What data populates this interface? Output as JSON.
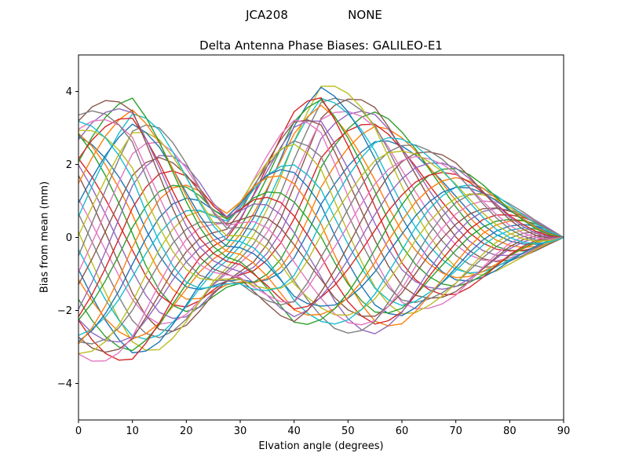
{
  "chart_data": {
    "type": "line",
    "suptitle": "JCA208                NONE",
    "title": "Delta Antenna Phase Biases: GALILEO-E1",
    "xlabel": "Elvation angle (degrees)",
    "ylabel": "Bias from mean (mm)",
    "xlim": [
      0,
      90
    ],
    "ylim": [
      -5,
      5
    ],
    "xticks": [
      0,
      10,
      20,
      30,
      40,
      50,
      60,
      70,
      80,
      90
    ],
    "yticks": [
      -4,
      -2,
      0,
      2,
      4
    ],
    "grid": false,
    "legend": "none",
    "n_series": 40,
    "x_step": 2.5,
    "line_width": 1.4,
    "axis_color": "#000000",
    "background": "#ffffff",
    "colors": [
      "#1f77b4",
      "#ff7f0e",
      "#2ca02c",
      "#d62728",
      "#9467bd",
      "#8c564b",
      "#e377c2",
      "#7f7f7f",
      "#bcbd22",
      "#17becf"
    ],
    "model": {
      "note": "family of phase-shifted oscillatory bias curves, all converging to 0 mm at 90 deg elevation",
      "period_deg": 64,
      "phase_offset": 0.3,
      "amp_base": 0.82,
      "amp_jitter": 0.22,
      "envelope_knots": [
        [
          0,
          3.4
        ],
        [
          5,
          3.5
        ],
        [
          10,
          3.6
        ],
        [
          15,
          3.0
        ],
        [
          20,
          2.2
        ],
        [
          25,
          1.3
        ],
        [
          27,
          1.0
        ],
        [
          30,
          1.2
        ],
        [
          35,
          2.0
        ],
        [
          40,
          2.9
        ],
        [
          45,
          3.3
        ],
        [
          50,
          3.2
        ],
        [
          55,
          3.1
        ],
        [
          60,
          2.7
        ],
        [
          65,
          2.2
        ],
        [
          70,
          1.8
        ],
        [
          75,
          1.3
        ],
        [
          80,
          0.8
        ],
        [
          85,
          0.4
        ],
        [
          90,
          0
        ]
      ],
      "offset_knots": [
        [
          0,
          0.1
        ],
        [
          10,
          0.2
        ],
        [
          20,
          -0.2
        ],
        [
          27,
          -0.4
        ],
        [
          35,
          0.2
        ],
        [
          45,
          0.9
        ],
        [
          50,
          0.7
        ],
        [
          55,
          0.5
        ],
        [
          60,
          0.3
        ],
        [
          70,
          0.2
        ],
        [
          80,
          0.1
        ],
        [
          90,
          0
        ]
      ]
    }
  }
}
